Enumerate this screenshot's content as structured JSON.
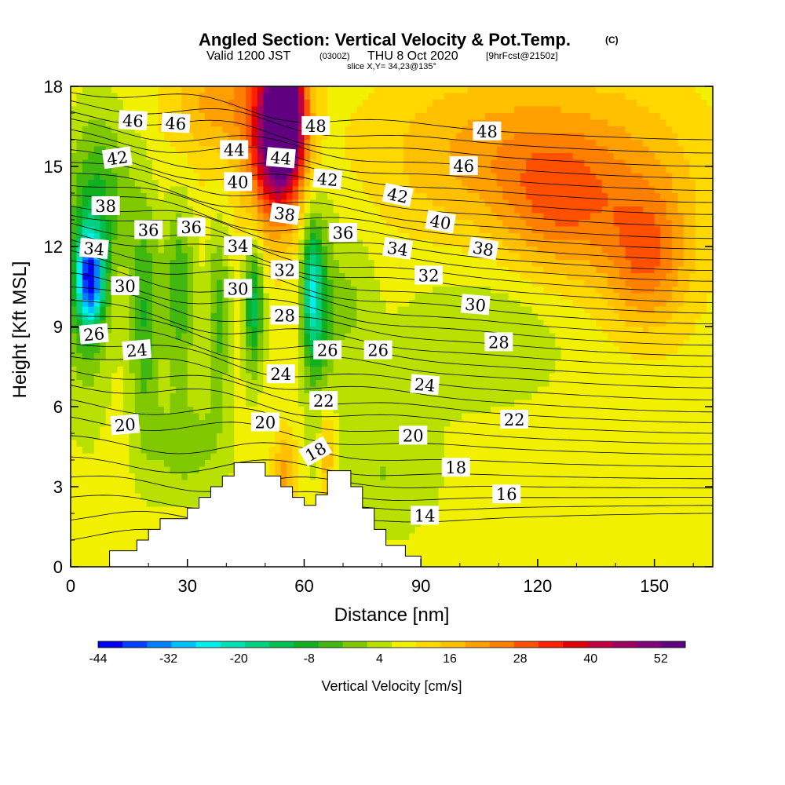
{
  "chart_data": {
    "type": "heatmap",
    "title": "Angled Section: Vertical Velocity & Pot.Temp.",
    "title_unit": "(C)",
    "subtitle_prefix": "Valid 1200 JST",
    "subtitle_z": "(0300Z)",
    "subtitle_date": "THU 8 Oct 2020",
    "subtitle_fcst": "[9hrFcst@2150z]",
    "slice_label": "slice X,Y= 34,23@135°",
    "xlabel": "Distance [nm]",
    "ylabel": "Height [Kft MSL]",
    "xlim": [
      0,
      165
    ],
    "ylim": [
      0,
      18
    ],
    "x_ticks": [
      "0",
      "30",
      "60",
      "90",
      "120",
      "150"
    ],
    "y_ticks": [
      "0",
      "3",
      "6",
      "9",
      "12",
      "15",
      "18"
    ],
    "colorbar": {
      "label": "Vertical Velocity [cm/s]",
      "tick_labels": [
        "-44",
        "-32",
        "-20",
        "-8",
        "4",
        "16",
        "28",
        "40",
        "52"
      ],
      "colors": [
        "#0000f0",
        "#0040ff",
        "#0080ff",
        "#00c0ff",
        "#00f0f0",
        "#00e0b0",
        "#00d080",
        "#00c050",
        "#10b020",
        "#40b810",
        "#80c800",
        "#b8e000",
        "#f0f000",
        "#ffd800",
        "#ffc000",
        "#ffa000",
        "#ff8000",
        "#ff5000",
        "#ff2000",
        "#e00000",
        "#c00040",
        "#a00060",
        "#800080",
        "#600080"
      ]
    },
    "terrain_profile": [
      [
        0,
        0
      ],
      [
        10,
        0
      ],
      [
        10,
        0.6
      ],
      [
        17,
        0.6
      ],
      [
        17,
        1.0
      ],
      [
        20,
        1.0
      ],
      [
        20,
        1.4
      ],
      [
        23,
        1.4
      ],
      [
        23,
        1.8
      ],
      [
        30,
        1.8
      ],
      [
        30,
        2.2
      ],
      [
        33,
        2.2
      ],
      [
        33,
        2.6
      ],
      [
        36,
        2.6
      ],
      [
        36,
        3.0
      ],
      [
        39,
        3.0
      ],
      [
        39,
        3.4
      ],
      [
        42,
        3.4
      ],
      [
        42,
        3.9
      ],
      [
        50,
        3.9
      ],
      [
        50,
        3.4
      ],
      [
        54,
        3.4
      ],
      [
        54,
        3.0
      ],
      [
        57,
        3.0
      ],
      [
        57,
        2.6
      ],
      [
        60,
        2.6
      ],
      [
        60,
        2.3
      ],
      [
        63,
        2.3
      ],
      [
        63,
        2.7
      ],
      [
        66,
        2.7
      ],
      [
        66,
        3.6
      ],
      [
        72,
        3.6
      ],
      [
        72,
        3.0
      ],
      [
        75,
        3.0
      ],
      [
        75,
        2.2
      ],
      [
        78,
        2.2
      ],
      [
        78,
        1.4
      ],
      [
        81,
        1.4
      ],
      [
        81,
        0.8
      ],
      [
        86,
        0.8
      ],
      [
        86,
        0.4
      ],
      [
        90,
        0.4
      ],
      [
        90,
        0
      ],
      [
        0,
        0
      ]
    ],
    "isentropes": {
      "unit": "C",
      "levels": [
        {
          "value": 14,
          "y0": 1.0,
          "y1": 2.0
        },
        {
          "value": 16,
          "y0": 2.5,
          "y1": 2.6
        },
        {
          "value": 18,
          "y0": 4.0,
          "y1": 3.3
        },
        {
          "value": 20,
          "y0": 5.6,
          "y1": 4.2
        },
        {
          "value": 22,
          "y0": 6.9,
          "y1": 5.0
        },
        {
          "value": 24,
          "y0": 8.0,
          "y1": 5.8
        },
        {
          "value": 26,
          "y0": 9.0,
          "y1": 6.7
        },
        {
          "value": 28,
          "y0": 9.9,
          "y1": 7.5
        },
        {
          "value": 30,
          "y0": 10.9,
          "y1": 8.3
        },
        {
          "value": 32,
          "y0": 11.8,
          "y1": 9.1
        },
        {
          "value": 34,
          "y0": 12.6,
          "y1": 9.9
        },
        {
          "value": 36,
          "y0": 13.3,
          "y1": 10.7
        },
        {
          "value": 38,
          "y0": 14.0,
          "y1": 11.5
        },
        {
          "value": 40,
          "y0": 14.7,
          "y1": 12.3
        },
        {
          "value": 42,
          "y0": 15.5,
          "y1": 13.2
        },
        {
          "value": 44,
          "y0": 16.3,
          "y1": 14.1
        },
        {
          "value": 46,
          "y0": 17.1,
          "y1": 15.0
        },
        {
          "value": 48,
          "y0": 17.9,
          "y1": 16.0
        }
      ],
      "labels": [
        {
          "text": "46",
          "x": 16,
          "y": 16.7,
          "rot": 3
        },
        {
          "text": "46",
          "x": 27,
          "y": 16.6,
          "rot": 3
        },
        {
          "text": "48",
          "x": 63,
          "y": 16.5,
          "rot": 0
        },
        {
          "text": "48",
          "x": 107,
          "y": 16.3,
          "rot": 0
        },
        {
          "text": "42",
          "x": 12,
          "y": 15.3,
          "rot": -8
        },
        {
          "text": "44",
          "x": 42,
          "y": 15.6,
          "rot": 0
        },
        {
          "text": "44",
          "x": 54,
          "y": 15.3,
          "rot": 5
        },
        {
          "text": "46",
          "x": 101,
          "y": 15.0,
          "rot": 0
        },
        {
          "text": "40",
          "x": 43,
          "y": 14.4,
          "rot": 0
        },
        {
          "text": "42",
          "x": 66,
          "y": 14.5,
          "rot": 5
        },
        {
          "text": "42",
          "x": 84,
          "y": 13.9,
          "rot": 12
        },
        {
          "text": "38",
          "x": 9,
          "y": 13.5,
          "rot": 0
        },
        {
          "text": "38",
          "x": 55,
          "y": 13.2,
          "rot": 8
        },
        {
          "text": "40",
          "x": 95,
          "y": 12.9,
          "rot": 10
        },
        {
          "text": "36",
          "x": 20,
          "y": 12.6,
          "rot": 0
        },
        {
          "text": "36",
          "x": 31,
          "y": 12.7,
          "rot": 0
        },
        {
          "text": "36",
          "x": 70,
          "y": 12.5,
          "rot": 0
        },
        {
          "text": "34",
          "x": 6,
          "y": 11.9,
          "rot": 5
        },
        {
          "text": "34",
          "x": 43,
          "y": 12.0,
          "rot": 0
        },
        {
          "text": "34",
          "x": 84,
          "y": 11.9,
          "rot": 8
        },
        {
          "text": "38",
          "x": 106,
          "y": 11.9,
          "rot": 10
        },
        {
          "text": "32",
          "x": 55,
          "y": 11.1,
          "rot": 0
        },
        {
          "text": "32",
          "x": 92,
          "y": 10.9,
          "rot": 0
        },
        {
          "text": "30",
          "x": 14,
          "y": 10.5,
          "rot": 0
        },
        {
          "text": "30",
          "x": 43,
          "y": 10.4,
          "rot": 0
        },
        {
          "text": "30",
          "x": 104,
          "y": 9.8,
          "rot": 5
        },
        {
          "text": "28",
          "x": 55,
          "y": 9.4,
          "rot": 0
        },
        {
          "text": "26",
          "x": 6,
          "y": 8.7,
          "rot": -5
        },
        {
          "text": "28",
          "x": 110,
          "y": 8.4,
          "rot": 0
        },
        {
          "text": "24",
          "x": 17,
          "y": 8.1,
          "rot": -5
        },
        {
          "text": "26",
          "x": 66,
          "y": 8.1,
          "rot": 0
        },
        {
          "text": "26",
          "x": 79,
          "y": 8.1,
          "rot": 0
        },
        {
          "text": "24",
          "x": 54,
          "y": 7.2,
          "rot": 0
        },
        {
          "text": "24",
          "x": 91,
          "y": 6.8,
          "rot": 5
        },
        {
          "text": "22",
          "x": 65,
          "y": 6.2,
          "rot": 0
        },
        {
          "text": "22",
          "x": 114,
          "y": 5.5,
          "rot": 0
        },
        {
          "text": "20",
          "x": 14,
          "y": 5.3,
          "rot": -5
        },
        {
          "text": "20",
          "x": 50,
          "y": 5.4,
          "rot": 0
        },
        {
          "text": "20",
          "x": 88,
          "y": 4.9,
          "rot": 0
        },
        {
          "text": "18",
          "x": 63,
          "y": 4.3,
          "rot": -30
        },
        {
          "text": "18",
          "x": 99,
          "y": 3.7,
          "rot": 0
        },
        {
          "text": "16",
          "x": 112,
          "y": 2.7,
          "rot": 0
        },
        {
          "text": "14",
          "x": 91,
          "y": 1.9,
          "rot": 0
        }
      ]
    },
    "velocity_field": {
      "unit": "cm/s",
      "background": 2,
      "features": [
        {
          "x": 0,
          "y": 9,
          "w": 1,
          "value": 0
        },
        {
          "x": 5,
          "y": 10.8,
          "sx": 3.5,
          "sy": 1.8,
          "value": -36
        },
        {
          "x": 4,
          "y": 10.0,
          "sx": 6,
          "sy": 4.5,
          "value": -8
        },
        {
          "x": 8,
          "y": 14,
          "sx": 8,
          "sy": 3,
          "value": -10
        },
        {
          "x": 19,
          "y": 9.5,
          "sx": 4,
          "sy": 4.5,
          "value": -12
        },
        {
          "x": 28,
          "y": 10.5,
          "sx": 4,
          "sy": 3.5,
          "value": -12
        },
        {
          "x": 38,
          "y": 9.5,
          "sx": 3,
          "sy": 3.5,
          "value": -10
        },
        {
          "x": 47,
          "y": 9.8,
          "sx": 2.5,
          "sy": 2.5,
          "value": -18
        },
        {
          "x": 62,
          "y": 10.3,
          "sx": 2.5,
          "sy": 2.5,
          "value": -20
        },
        {
          "x": 64,
          "y": 9.5,
          "sx": 4,
          "sy": 4,
          "value": -10
        },
        {
          "x": 72,
          "y": 10,
          "sx": 6,
          "sy": 3,
          "value": -4
        },
        {
          "x": 105,
          "y": 8.5,
          "sx": 22,
          "sy": 2.5,
          "value": -4
        },
        {
          "x": 80,
          "y": 3.5,
          "sx": 15,
          "sy": 2.5,
          "value": -4
        },
        {
          "x": 30,
          "y": 4.5,
          "sx": 10,
          "sy": 2,
          "value": -6
        },
        {
          "x": 55,
          "y": 17,
          "sx": 5,
          "sy": 2.5,
          "value": 52
        },
        {
          "x": 52,
          "y": 15.5,
          "sx": 7,
          "sy": 3,
          "value": 30
        },
        {
          "x": 40,
          "y": 17.5,
          "sx": 14,
          "sy": 2,
          "value": 14
        },
        {
          "x": 110,
          "y": 15.5,
          "sx": 30,
          "sy": 3,
          "value": 14
        },
        {
          "x": 125,
          "y": 13.5,
          "sx": 14,
          "sy": 2.5,
          "value": 14
        },
        {
          "x": 148,
          "y": 11.5,
          "sx": 10,
          "sy": 2.5,
          "value": 16
        },
        {
          "x": 145,
          "y": 14,
          "sx": 20,
          "sy": 4,
          "value": 10
        },
        {
          "x": 55,
          "y": 3.5,
          "sx": 3,
          "sy": 1.5,
          "value": 14
        },
        {
          "x": 66,
          "y": 4.2,
          "sx": 2,
          "sy": 2,
          "value": 14
        },
        {
          "x": 32,
          "y": 14,
          "sx": 14,
          "sy": 3,
          "value": 4
        },
        {
          "x": 140,
          "y": 1.5,
          "sx": 30,
          "sy": 2,
          "value": 3
        }
      ]
    }
  }
}
